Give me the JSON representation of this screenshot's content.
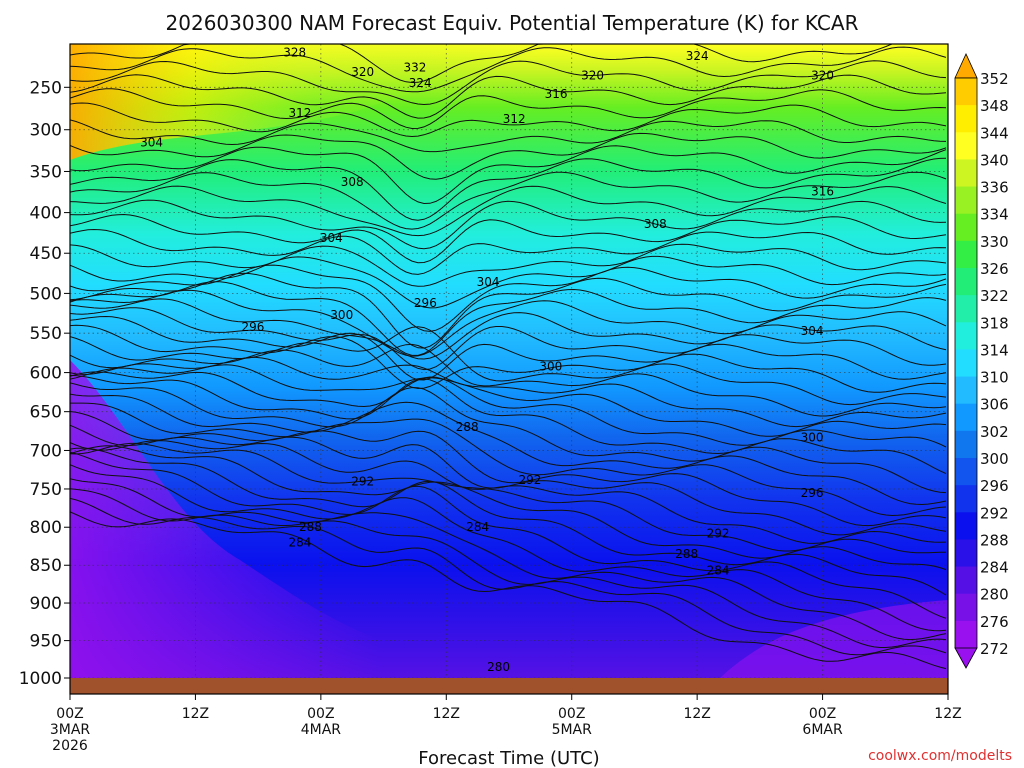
{
  "chart_data": {
    "type": "heatmap",
    "title": "2026030300 NAM Forecast Equiv. Potential Temperature (K) for KCAR",
    "xlabel": "Forecast Time (UTC)",
    "ylabel": "",
    "credit": "coolwx.com/modelts",
    "x_hours_range": [
      0,
      84
    ],
    "y_pressure_range": [
      1000,
      200
    ],
    "x_ticks": [
      {
        "hour": 0,
        "line1": "00Z",
        "line2": "3MAR",
        "line3": "2026"
      },
      {
        "hour": 12,
        "line1": "12Z",
        "line2": "",
        "line3": ""
      },
      {
        "hour": 24,
        "line1": "00Z",
        "line2": "4MAR",
        "line3": ""
      },
      {
        "hour": 36,
        "line1": "12Z",
        "line2": "",
        "line3": ""
      },
      {
        "hour": 48,
        "line1": "00Z",
        "line2": "5MAR",
        "line3": ""
      },
      {
        "hour": 60,
        "line1": "12Z",
        "line2": "",
        "line3": ""
      },
      {
        "hour": 72,
        "line1": "00Z",
        "line2": "6MAR",
        "line3": ""
      },
      {
        "hour": 84,
        "line1": "12Z",
        "line2": "",
        "line3": ""
      }
    ],
    "y_ticks": [
      "250",
      "300",
      "350",
      "400",
      "450",
      "500",
      "550",
      "600",
      "650",
      "700",
      "750",
      "800",
      "850",
      "900",
      "950",
      "1000"
    ],
    "colorbar_levels": [
      "352",
      "348",
      "344",
      "340",
      "336",
      "334",
      "330",
      "326",
      "322",
      "318",
      "314",
      "310",
      "306",
      "302",
      "300",
      "296",
      "292",
      "288",
      "284",
      "280",
      "276",
      "272"
    ],
    "colorbar_colors": [
      "#ffaa00",
      "#ffcc00",
      "#ffee00",
      "#ffff22",
      "#ccf522",
      "#99f022",
      "#66ee22",
      "#33ee44",
      "#22ee77",
      "#22eeaa",
      "#22eedd",
      "#22ddff",
      "#22bbff",
      "#1199ff",
      "#1177ee",
      "#1155ee",
      "#1133ee",
      "#0a11ee",
      "#2a11e8",
      "#5511e5",
      "#7711e8",
      "#9911ee"
    ],
    "contour_labels": [
      {
        "text": "328",
        "hour": 21.5,
        "p": 210
      },
      {
        "text": "332",
        "hour": 33.0,
        "p": 227
      },
      {
        "text": "324",
        "hour": 33.5,
        "p": 245
      },
      {
        "text": "320",
        "hour": 28.0,
        "p": 232
      },
      {
        "text": "324",
        "hour": 60.0,
        "p": 214
      },
      {
        "text": "320",
        "hour": 50.0,
        "p": 236
      },
      {
        "text": "320",
        "hour": 72.0,
        "p": 236
      },
      {
        "text": "316",
        "hour": 46.5,
        "p": 258
      },
      {
        "text": "312",
        "hour": 22.0,
        "p": 280
      },
      {
        "text": "312",
        "hour": 42.5,
        "p": 287
      },
      {
        "text": "304",
        "hour": 7.8,
        "p": 315
      },
      {
        "text": "308",
        "hour": 27.0,
        "p": 363
      },
      {
        "text": "316",
        "hour": 72.0,
        "p": 374
      },
      {
        "text": "308",
        "hour": 56.0,
        "p": 414
      },
      {
        "text": "304",
        "hour": 25.0,
        "p": 431
      },
      {
        "text": "304",
        "hour": 40.0,
        "p": 486
      },
      {
        "text": "296",
        "hour": 17.5,
        "p": 542
      },
      {
        "text": "300",
        "hour": 26.0,
        "p": 527
      },
      {
        "text": "296",
        "hour": 34.0,
        "p": 512
      },
      {
        "text": "304",
        "hour": 71.0,
        "p": 547
      },
      {
        "text": "300",
        "hour": 46.0,
        "p": 592
      },
      {
        "text": "300",
        "hour": 71.0,
        "p": 683
      },
      {
        "text": "288",
        "hour": 38.0,
        "p": 670
      },
      {
        "text": "292",
        "hour": 28.0,
        "p": 740
      },
      {
        "text": "292",
        "hour": 44.0,
        "p": 738
      },
      {
        "text": "296",
        "hour": 71.0,
        "p": 755
      },
      {
        "text": "284",
        "hour": 39.0,
        "p": 800
      },
      {
        "text": "288",
        "hour": 23.0,
        "p": 800
      },
      {
        "text": "284",
        "hour": 22.0,
        "p": 820
      },
      {
        "text": "292",
        "hour": 62.0,
        "p": 808
      },
      {
        "text": "288",
        "hour": 59.0,
        "p": 835
      },
      {
        "text": "284",
        "hour": 62.0,
        "p": 857
      },
      {
        "text": "280",
        "hour": 41.0,
        "p": 985
      }
    ]
  }
}
